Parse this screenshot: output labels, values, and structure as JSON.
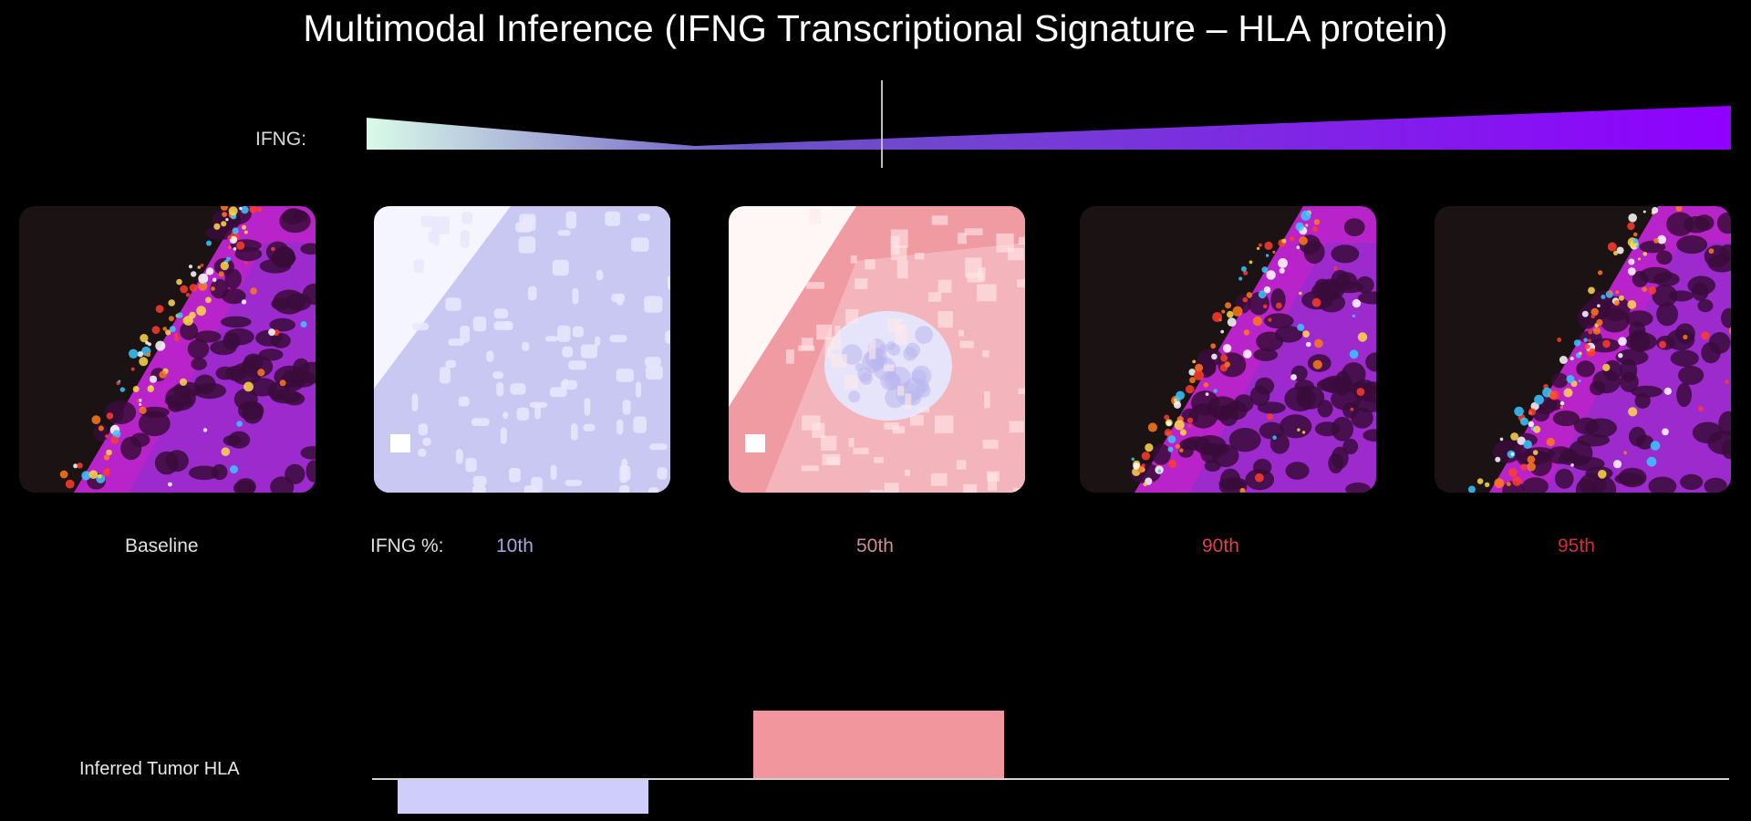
{
  "title": "Multimodal Inference (IFNG Transcriptional Signature – HLA protein)",
  "ifng_scale": {
    "label": "IFNG:",
    "colors": {
      "low": "#d9fbe8",
      "mid": "#6a55c4",
      "high": "#8f00ff"
    }
  },
  "panels": [
    {
      "name": "baseline",
      "label": "Baseline",
      "kind": "fluorescence"
    },
    {
      "name": "10th",
      "label": "10th",
      "kind": "blue-map",
      "label_color": "#a8a6d8"
    },
    {
      "name": "50th",
      "label": "50th",
      "kind": "red-map",
      "label_color": "#cd8e96"
    },
    {
      "name": "90th",
      "label": "90th",
      "kind": "fluorescence",
      "label_color": "#d7424f"
    },
    {
      "name": "95th",
      "label": "95th",
      "kind": "fluorescence",
      "label_color": "#d42b3c"
    }
  ],
  "percentile_prefix": "IFNG %:",
  "hla": {
    "label": "Inferred Tumor HLA",
    "bars": [
      {
        "name": "10th",
        "value": -1,
        "color": "#cfcdf9"
      },
      {
        "name": "50th",
        "value": 2,
        "color": "#f2969e"
      }
    ]
  }
}
